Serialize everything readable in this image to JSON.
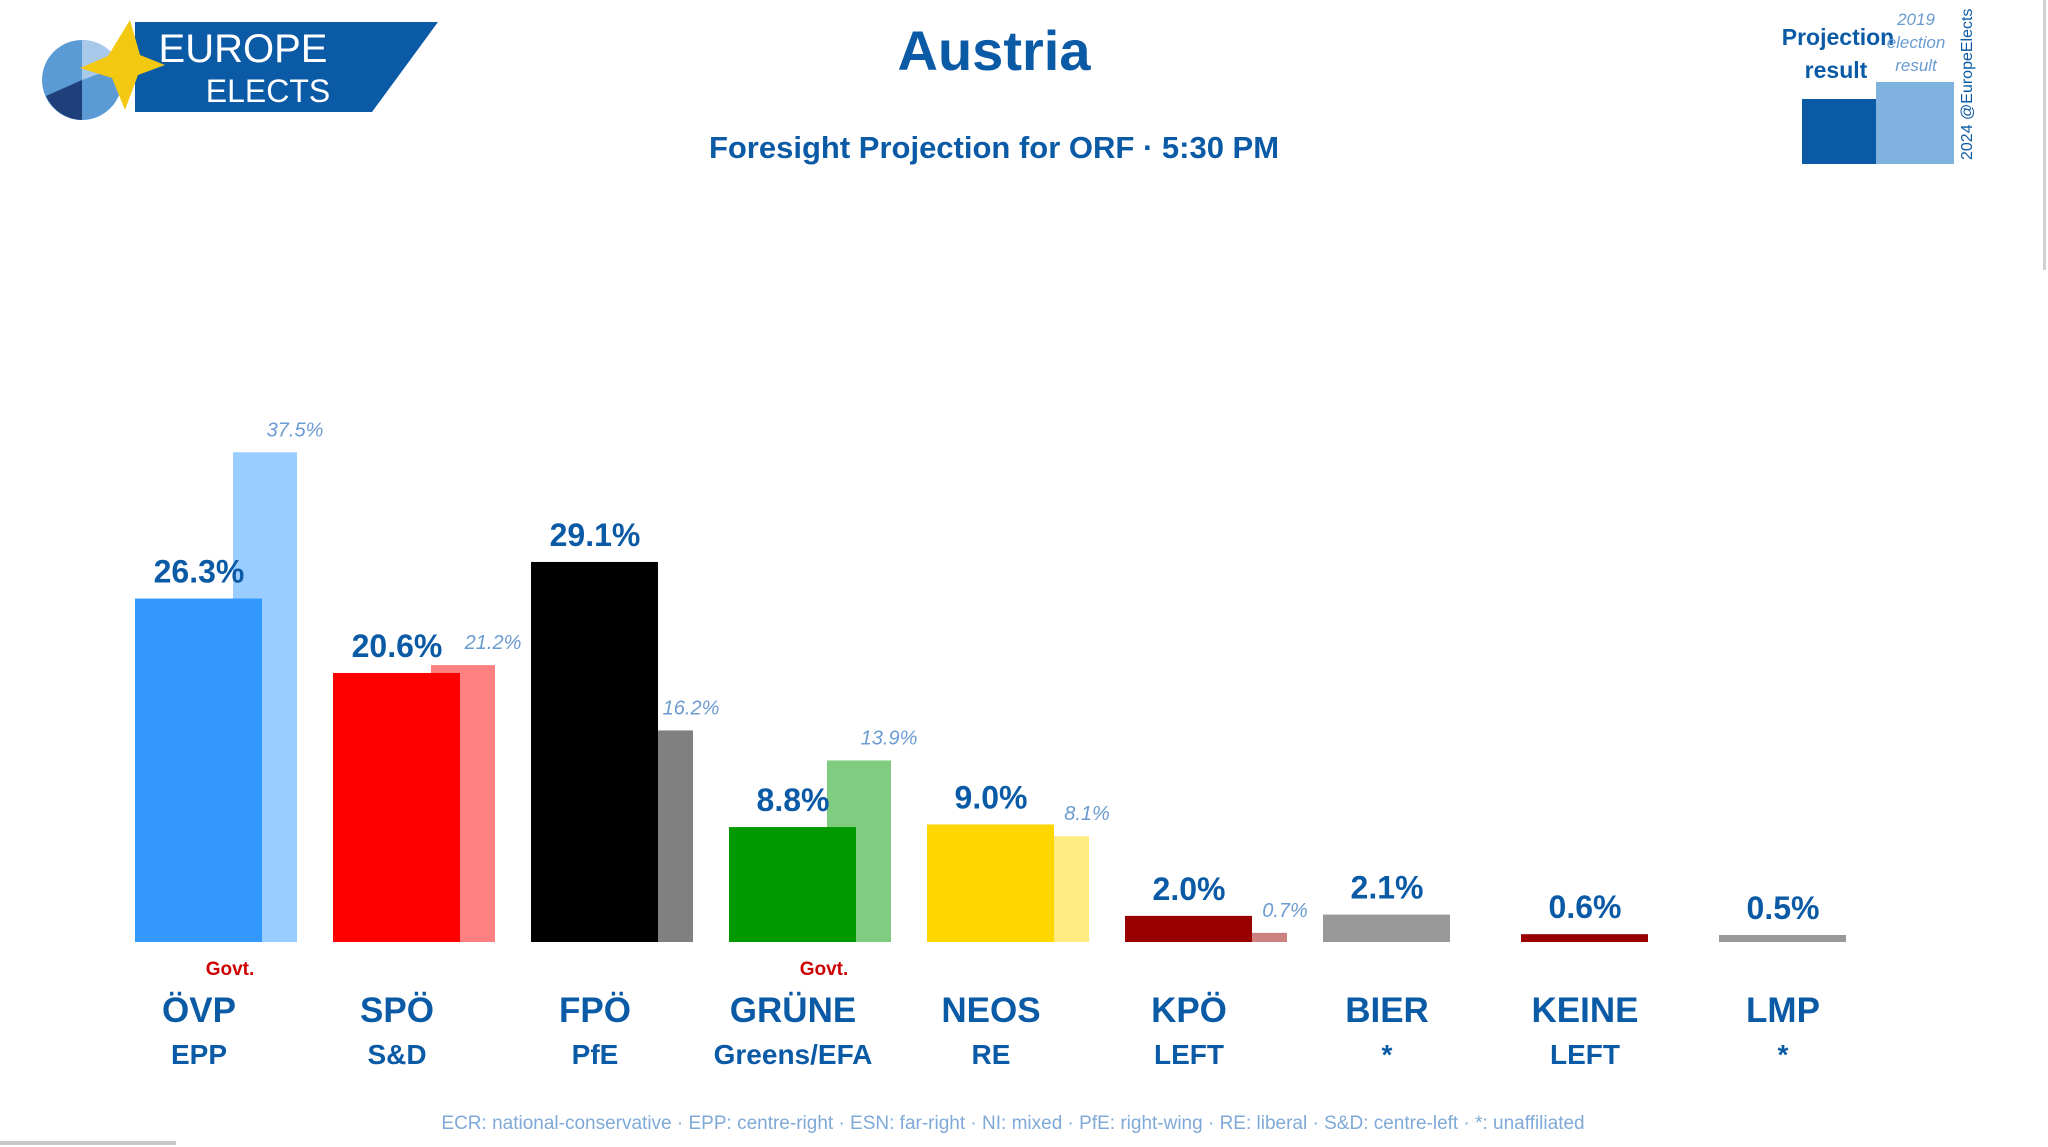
{
  "brand": {
    "line1": "EUROPE",
    "line2": "ELECTS"
  },
  "header": {
    "title": "Austria",
    "subtitle": "Foresight Projection for ORF · 5:30 PM"
  },
  "legend": {
    "projection_line1": "Projection",
    "projection_line2": "result",
    "previous_line1": "2019",
    "previous_line2": "election",
    "previous_line3": "result",
    "copyright": "2024 @EuropeElects",
    "colors": {
      "projection": "#0b5aa6",
      "previous": "#7fb2de"
    }
  },
  "footnote": "ECR: national-conservative · EPP: centre-right · ESN: far-right · NI: mixed · PfE: right-wing · RE: liberal · S&D: centre-left · *: unaffiliated",
  "chart_data": {
    "type": "bar",
    "categories": [
      "ÖVP",
      "SPÖ",
      "FPÖ",
      "GRÜNE",
      "NEOS",
      "KPÖ",
      "BIER",
      "KEINE",
      "LMP"
    ],
    "groups": [
      "EPP",
      "S&D",
      "PfE",
      "Greens/EFA",
      "RE",
      "LEFT",
      "*",
      "LEFT",
      "*"
    ],
    "government_label": "Govt.",
    "government": [
      true,
      false,
      false,
      true,
      false,
      false,
      false,
      false,
      false
    ],
    "series": [
      {
        "name": "Projection result",
        "values": [
          26.3,
          20.6,
          29.1,
          8.8,
          9.0,
          2.0,
          2.1,
          0.6,
          0.5
        ],
        "labels": [
          "26.3%",
          "20.6%",
          "29.1%",
          "8.8%",
          "9.0%",
          "2.0%",
          "2.1%",
          "0.6%",
          "0.5%"
        ],
        "colors": [
          "#3399ff",
          "#ff0000",
          "#000000",
          "#009900",
          "#ffd700",
          "#990000",
          "#999999",
          "#990000",
          "#999999"
        ]
      },
      {
        "name": "2019 election result",
        "values": [
          37.5,
          21.2,
          16.2,
          13.9,
          8.1,
          0.7,
          null,
          null,
          null
        ],
        "labels": [
          "37.5%",
          "21.2%",
          "16.2%",
          "13.9%",
          "8.1%",
          "0.7%",
          "",
          "",
          ""
        ],
        "colors": [
          "#99ccff",
          "#ff8080",
          "#808080",
          "#80cc80",
          "#ffeb80",
          "#cc8080",
          "",
          "",
          ""
        ]
      }
    ],
    "ylim": [
      0,
      37.5
    ],
    "grid": false
  }
}
